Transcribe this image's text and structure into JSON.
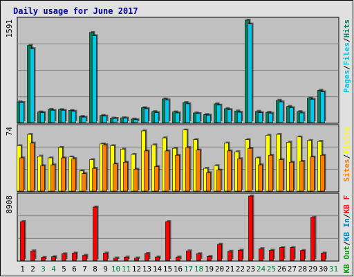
{
  "title": "Daily usage for June 2017",
  "colors": {
    "background": "#C0C0C0",
    "frame_bg": "#E0E0E0",
    "title": "#0000A0",
    "weekend_label": "#008040",
    "hits": "#00805C",
    "files": "#00C8E8",
    "visits": "#FFFF00",
    "sites": "#FF8000",
    "kbytes": "#FF0000",
    "pages": "#00C8E8",
    "kb_in": "#0080C0",
    "kb_out": "#00A000"
  },
  "chart_data": [
    {
      "type": "bar",
      "panel": "hits-files",
      "ymax_label": "1591",
      "ylim": [
        0,
        1591
      ],
      "legend": [
        {
          "text": "Hits",
          "color": "#00805C"
        },
        {
          "text": "/",
          "color": "#000000"
        },
        {
          "text": "Files",
          "color": "#00C8E8"
        },
        {
          "text": "/",
          "color": "#000000"
        },
        {
          "text": "Pages",
          "color": "#00C8E8"
        }
      ],
      "categories": [
        "1",
        "2",
        "3",
        "4",
        "5",
        "6",
        "7",
        "8",
        "9",
        "10",
        "11",
        "12",
        "13",
        "14",
        "15",
        "16",
        "17",
        "18",
        "19",
        "20",
        "21",
        "22",
        "23",
        "24",
        "25",
        "26",
        "27",
        "28",
        "29",
        "30",
        "31"
      ],
      "series": [
        {
          "name": "Hits",
          "values": [
            330,
            1200,
            175,
            215,
            210,
            200,
            105,
            1400,
            120,
            80,
            85,
            65,
            240,
            180,
            375,
            175,
            320,
            160,
            135,
            300,
            225,
            190,
            1591,
            185,
            170,
            355,
            260,
            180,
            390,
            510,
            0
          ]
        },
        {
          "name": "Files",
          "values": [
            320,
            1150,
            165,
            200,
            200,
            185,
            95,
            1350,
            110,
            75,
            80,
            55,
            225,
            165,
            360,
            160,
            300,
            150,
            125,
            280,
            210,
            170,
            1530,
            165,
            155,
            330,
            240,
            160,
            370,
            485,
            0
          ]
        }
      ]
    },
    {
      "type": "bar",
      "panel": "visits-sites",
      "ymax_label": "74",
      "ylim": [
        0,
        74
      ],
      "legend": [
        {
          "text": "Visits",
          "color": "#FFFF00"
        },
        {
          "text": "/",
          "color": "#000000"
        },
        {
          "text": "Sites",
          "color": "#FF8000"
        }
      ],
      "categories": [
        "1",
        "2",
        "3",
        "4",
        "5",
        "6",
        "7",
        "8",
        "9",
        "10",
        "11",
        "12",
        "13",
        "14",
        "15",
        "16",
        "17",
        "18",
        "19",
        "20",
        "21",
        "22",
        "23",
        "24",
        "25",
        "26",
        "27",
        "28",
        "29",
        "30",
        "31"
      ],
      "series": [
        {
          "name": "Visits",
          "values": [
            53,
            66,
            41,
            39,
            51,
            40,
            24,
            37,
            55,
            53,
            49,
            43,
            70,
            54,
            62,
            50,
            71,
            60,
            27,
            30,
            56,
            46,
            60,
            39,
            65,
            66,
            57,
            63,
            59,
            58,
            0
          ]
        },
        {
          "name": "Sites",
          "values": [
            39,
            56,
            30,
            31,
            39,
            38,
            21,
            27,
            54,
            32,
            34,
            26,
            47,
            29,
            47,
            42,
            51,
            48,
            22,
            25,
            47,
            38,
            50,
            31,
            42,
            37,
            34,
            35,
            40,
            42,
            0
          ]
        }
      ]
    },
    {
      "type": "bar",
      "panel": "kbytes",
      "ymax_label": "8908",
      "ylim": [
        0,
        8908
      ],
      "legend": [
        {
          "text": "KB F",
          "color": "#FF0000"
        },
        {
          "text": "/",
          "color": "#000000"
        },
        {
          "text": "KB In",
          "color": "#0080C0"
        },
        {
          "text": "/",
          "color": "#000000"
        },
        {
          "text": "KB Out",
          "color": "#00A000"
        }
      ],
      "categories": [
        "1",
        "2",
        "3",
        "4",
        "5",
        "6",
        "7",
        "8",
        "9",
        "10",
        "11",
        "12",
        "13",
        "14",
        "15",
        "16",
        "17",
        "18",
        "19",
        "20",
        "21",
        "22",
        "23",
        "24",
        "25",
        "26",
        "27",
        "28",
        "29",
        "30",
        "31"
      ],
      "series": [
        {
          "name": "KB F",
          "values": [
            5400,
            1400,
            500,
            600,
            1000,
            1100,
            800,
            7400,
            1100,
            420,
            550,
            420,
            1050,
            560,
            5400,
            560,
            1400,
            1000,
            640,
            2300,
            1350,
            1500,
            8908,
            1700,
            1500,
            1850,
            1850,
            1450,
            6000,
            1100,
            0
          ]
        }
      ]
    }
  ],
  "x_labels": [
    {
      "text": "1",
      "weekend": false
    },
    {
      "text": "2",
      "weekend": false
    },
    {
      "text": "3",
      "weekend": true
    },
    {
      "text": "4",
      "weekend": true
    },
    {
      "text": "5",
      "weekend": false
    },
    {
      "text": "6",
      "weekend": false
    },
    {
      "text": "7",
      "weekend": false
    },
    {
      "text": "8",
      "weekend": false
    },
    {
      "text": "9",
      "weekend": false
    },
    {
      "text": "10",
      "weekend": true
    },
    {
      "text": "11",
      "weekend": true
    },
    {
      "text": "12",
      "weekend": false
    },
    {
      "text": "13",
      "weekend": false
    },
    {
      "text": "14",
      "weekend": false
    },
    {
      "text": "15",
      "weekend": false
    },
    {
      "text": "16",
      "weekend": false
    },
    {
      "text": "17",
      "weekend": true
    },
    {
      "text": "18",
      "weekend": true
    },
    {
      "text": "19",
      "weekend": false
    },
    {
      "text": "20",
      "weekend": false
    },
    {
      "text": "21",
      "weekend": false
    },
    {
      "text": "22",
      "weekend": false
    },
    {
      "text": "23",
      "weekend": false
    },
    {
      "text": "24",
      "weekend": true
    },
    {
      "text": "25",
      "weekend": true
    },
    {
      "text": "26",
      "weekend": false
    },
    {
      "text": "27",
      "weekend": false
    },
    {
      "text": "28",
      "weekend": false
    },
    {
      "text": "29",
      "weekend": false
    },
    {
      "text": "30",
      "weekend": false
    },
    {
      "text": "31",
      "weekend": true
    }
  ]
}
